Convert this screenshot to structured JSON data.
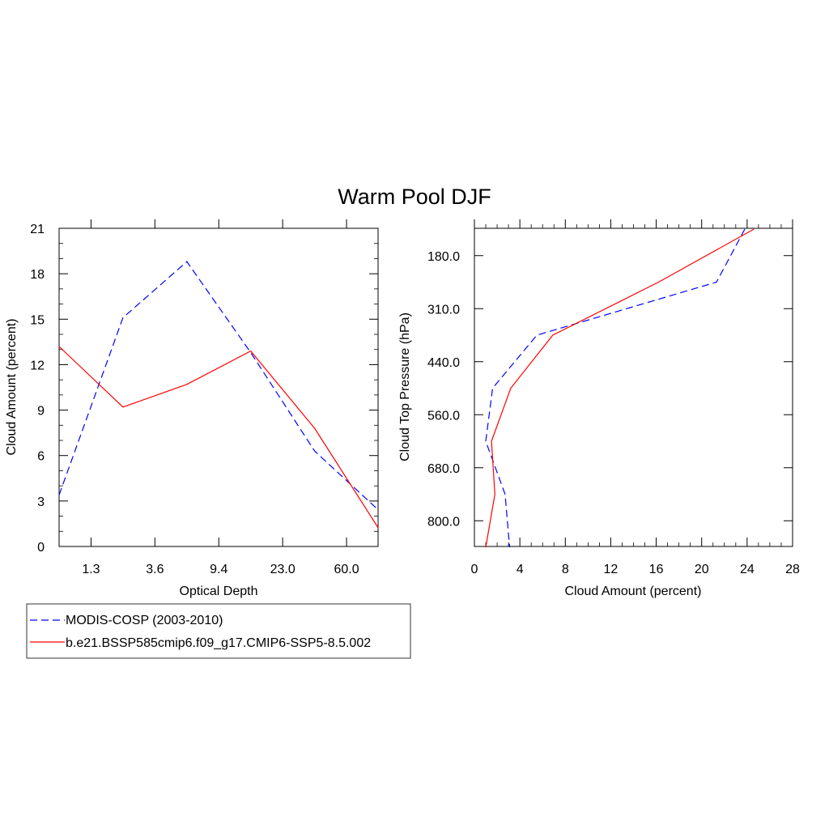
{
  "title": "Warm Pool DJF",
  "chart_data": [
    {
      "type": "line",
      "xlabel": "Optical Depth",
      "ylabel": "Cloud Amount (percent)",
      "x_tick_labels": [
        "1.3",
        "3.6",
        "9.4",
        "23.0",
        "60.0"
      ],
      "y_ticks": [
        0,
        3,
        6,
        9,
        12,
        15,
        18,
        21
      ],
      "ylim": [
        0,
        21
      ],
      "x_positions": [
        0,
        1,
        2,
        3,
        4,
        5
      ],
      "series": [
        {
          "name": "MODIS-COSP (2003-2010)",
          "color": "#0000ff",
          "dash": true,
          "values": [
            3.4,
            15.1,
            18.8,
            12.8,
            6.3,
            2.4
          ]
        },
        {
          "name": "b.e21.BSSP585cmip6.f09_g17.CMIP6-SSP5-8.5.002",
          "color": "#ff0000",
          "dash": false,
          "values": [
            13.2,
            9.2,
            10.7,
            12.9,
            7.8,
            1.2
          ]
        }
      ]
    },
    {
      "type": "line",
      "xlabel": "Cloud Amount (percent)",
      "ylabel": "Cloud Top Pressure (hPa)",
      "x_ticks": [
        0,
        4,
        8,
        12,
        16,
        20,
        24,
        28
      ],
      "xlim": [
        0,
        28
      ],
      "y_tick_labels": [
        "180.0",
        "310.0",
        "440.0",
        "560.0",
        "680.0",
        "800.0"
      ],
      "y_positions": [
        0,
        1,
        2,
        3,
        4,
        5,
        6
      ],
      "series": [
        {
          "name": "MODIS-COSP (2003-2010)",
          "color": "#0000ff",
          "dash": true,
          "values": [
            23.8,
            21.3,
            5.5,
            1.6,
            1.0,
            2.7,
            3.1
          ]
        },
        {
          "name": "b.e21.BSSP585cmip6.f09_g17.CMIP6-SSP5-8.5.002",
          "color": "#ff0000",
          "dash": false,
          "values": [
            24.6,
            16.2,
            6.9,
            3.2,
            1.5,
            1.8,
            1.0
          ]
        }
      ]
    }
  ],
  "legend": [
    {
      "label": "MODIS-COSP (2003-2010)",
      "color": "#0000ff",
      "dash": true
    },
    {
      "label": "b.e21.BSSP585cmip6.f09_g17.CMIP6-SSP5-8.5.002",
      "color": "#ff0000",
      "dash": false
    }
  ]
}
